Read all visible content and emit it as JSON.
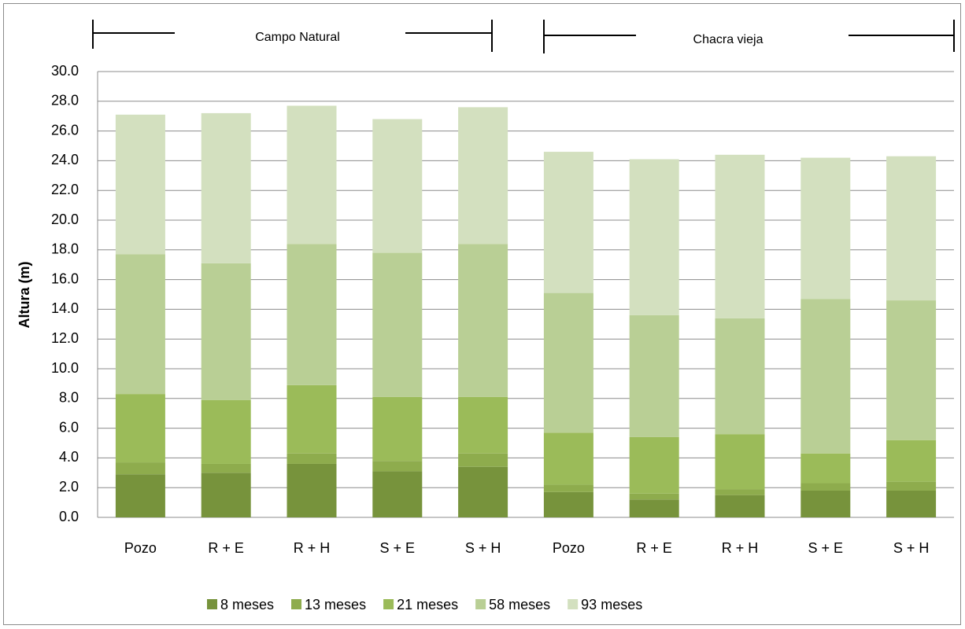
{
  "chart_data": {
    "type": "stacked_bar",
    "y_label": "Altura (m)",
    "annotations": [
      "Campo Natural",
      "Chacra vieja"
    ],
    "categories": [
      "Pozo",
      "R + E",
      "R + H",
      "S + E",
      "S + H",
      "Pozo",
      "R + E",
      "R + H",
      "S + E",
      "S + H"
    ],
    "series": [
      {
        "name": "8 meses",
        "color": "#77933c",
        "values": [
          2.9,
          3.0,
          3.6,
          3.1,
          3.4,
          1.7,
          1.2,
          1.5,
          1.8,
          1.8
        ]
      },
      {
        "name": "13 meses",
        "color": "#8eac4d",
        "values": [
          0.8,
          0.6,
          0.7,
          0.7,
          0.9,
          0.5,
          0.4,
          0.4,
          0.5,
          0.6
        ]
      },
      {
        "name": "21 meses",
        "color": "#9bbb59",
        "values": [
          4.6,
          4.3,
          4.6,
          4.3,
          3.8,
          3.5,
          3.8,
          3.7,
          2.0,
          2.8
        ]
      },
      {
        "name": "58 meses",
        "color": "#b9cf95",
        "values": [
          9.4,
          9.2,
          9.5,
          9.7,
          10.3,
          9.4,
          8.2,
          7.8,
          10.4,
          9.4
        ]
      },
      {
        "name": "93 meses",
        "color": "#d3e0bf",
        "values": [
          9.4,
          10.1,
          9.3,
          9.0,
          9.2,
          9.5,
          10.5,
          11.0,
          9.5,
          9.7
        ]
      }
    ],
    "ylim": [
      0,
      30
    ],
    "yticks": [
      {
        "value": 0,
        "label": "0.0"
      },
      {
        "value": 2,
        "label": "2.0"
      },
      {
        "value": 4,
        "label": "4.0"
      },
      {
        "value": 6,
        "label": "6.0"
      },
      {
        "value": 8,
        "label": "8.0"
      },
      {
        "value": 10,
        "label": "10.0"
      },
      {
        "value": 12,
        "label": "12.0"
      },
      {
        "value": 14,
        "label": "14.0"
      },
      {
        "value": 16,
        "label": "16.0"
      },
      {
        "value": 18,
        "label": "18.0"
      },
      {
        "value": 20,
        "label": "20.0"
      },
      {
        "value": 22,
        "label": "22.0"
      },
      {
        "value": 24,
        "label": "24.0"
      },
      {
        "value": 26,
        "label": "26.0"
      },
      {
        "value": 28,
        "label": "28.0"
      },
      {
        "value": 30,
        "label": "30.0"
      }
    ],
    "grid": true,
    "legend": "bottom"
  }
}
